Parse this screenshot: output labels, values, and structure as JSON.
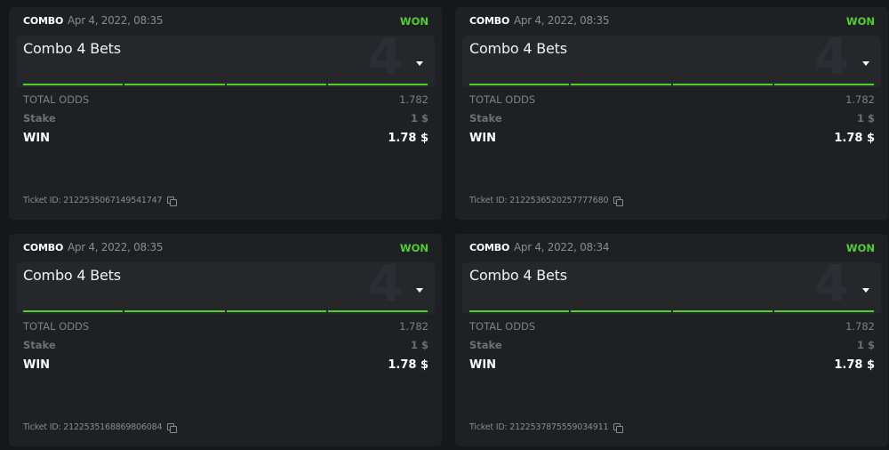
{
  "colors": {
    "won": "#4fd12b",
    "background": "#16171a",
    "card": "#1f2023"
  },
  "tickets": [
    {
      "type": "COMBO",
      "date": "Apr 4, 2022, 08:35",
      "status": "WON",
      "title": "Combo 4 Bets",
      "count": "4",
      "total_odds_label": "TOTAL ODDS",
      "total_odds": "1.782",
      "stake_label": "Stake",
      "stake": "1 $",
      "win_label": "WIN",
      "win": "1.78 $",
      "ticket_id": "Ticket ID: 2122535067149541747",
      "icon": "copy-icon"
    },
    {
      "type": "COMBO",
      "date": "Apr 4, 2022, 08:35",
      "status": "WON",
      "title": "Combo 4 Bets",
      "count": "4",
      "total_odds_label": "TOTAL ODDS",
      "total_odds": "1.782",
      "stake_label": "Stake",
      "stake": "1 $",
      "win_label": "WIN",
      "win": "1.78 $",
      "ticket_id": "Ticket ID: 2122536520257777680",
      "icon": "copy-icon"
    },
    {
      "type": "COMBO",
      "date": "Apr 4, 2022, 08:35",
      "status": "WON",
      "title": "Combo 4 Bets",
      "count": "4",
      "total_odds_label": "TOTAL ODDS",
      "total_odds": "1.782",
      "stake_label": "Stake",
      "stake": "1 $",
      "win_label": "WIN",
      "win": "1.78 $",
      "ticket_id": "Ticket ID: 2122535168869806084",
      "icon": "copy-icon"
    },
    {
      "type": "COMBO",
      "date": "Apr 4, 2022, 08:34",
      "status": "WON",
      "title": "Combo 4 Bets",
      "count": "4",
      "total_odds_label": "TOTAL ODDS",
      "total_odds": "1.782",
      "stake_label": "Stake",
      "stake": "1 $",
      "win_label": "WIN",
      "win": "1.78 $",
      "ticket_id": "Ticket ID: 2122537875559034911",
      "icon": "copy-icon"
    }
  ]
}
